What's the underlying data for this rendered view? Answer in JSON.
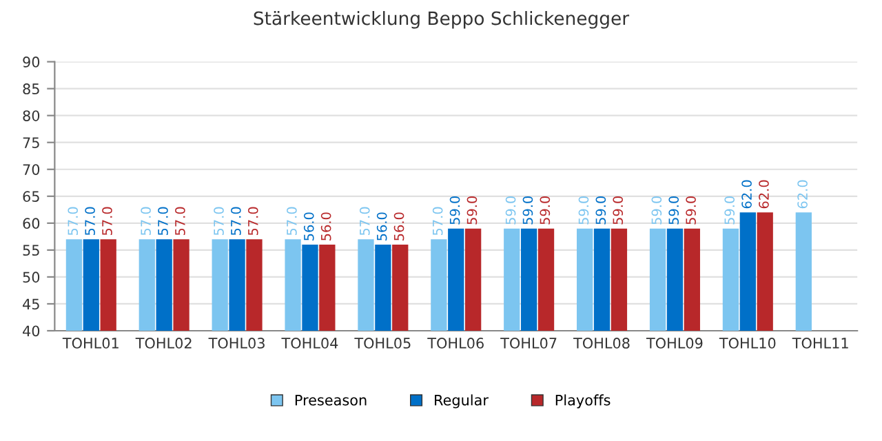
{
  "chart_data": {
    "type": "bar",
    "title": "Stärkeentwicklung Beppo Schlickenegger",
    "categories": [
      "TOHL01",
      "TOHL02",
      "TOHL03",
      "TOHL04",
      "TOHL05",
      "TOHL06",
      "TOHL07",
      "TOHL08",
      "TOHL09",
      "TOHL10",
      "TOHL11"
    ],
    "series": [
      {
        "name": "Preseason",
        "color": "#7cc5f0",
        "values": [
          57,
          57,
          57,
          57,
          57,
          57,
          59,
          59,
          59,
          59,
          62
        ],
        "value_labels": [
          "57.0",
          "57.0",
          "57.0",
          "57.0",
          "57.0",
          "57.0",
          "59.0",
          "59.0",
          "59.0",
          "59.0",
          "62.0"
        ]
      },
      {
        "name": "Regular",
        "color": "#0070c8",
        "values": [
          57,
          57,
          57,
          56,
          56,
          59,
          59,
          59,
          59,
          62,
          null
        ],
        "value_labels": [
          "57.0",
          "57.0",
          "57.0",
          "56.0",
          "56.0",
          "59.0",
          "59.0",
          "59.0",
          "59.0",
          "62.0",
          null
        ]
      },
      {
        "name": "Playoffs",
        "color": "#b8282a",
        "values": [
          57,
          57,
          57,
          56,
          56,
          59,
          59,
          59,
          59,
          62,
          null
        ],
        "value_labels": [
          "57.0",
          "57.0",
          "57.0",
          "56.0",
          "56.0",
          "59.0",
          "59.0",
          "59.0",
          "59.0",
          "62.0",
          null
        ]
      }
    ],
    "ylim": [
      40,
      90
    ],
    "yticks": [
      40,
      45,
      50,
      55,
      60,
      65,
      70,
      75,
      80,
      85,
      90
    ],
    "grid": "y",
    "legend": "bottom"
  }
}
